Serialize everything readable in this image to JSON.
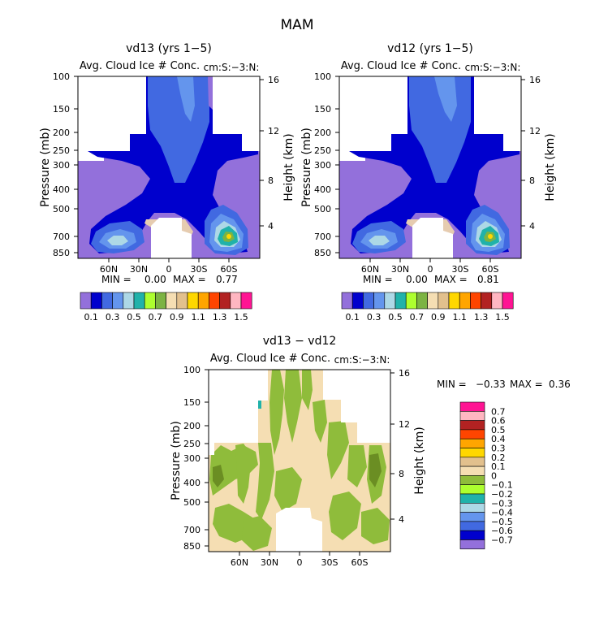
{
  "page_title": "MAM",
  "panels": [
    {
      "title": "vd13 (yrs 1−5)",
      "subtitle": "Avg. Cloud Ice # Conc.",
      "units": "cm:S:−3:N:",
      "min_label": "MIN =",
      "min_value": "0.00",
      "max_label": "MAX =",
      "max_value": "0.77"
    },
    {
      "title": "vd12 (yrs 1−5)",
      "subtitle": "Avg. Cloud Ice # Conc.",
      "units": "cm:S:−3:N:",
      "min_label": "MIN =",
      "min_value": "0.00",
      "max_label": "MAX =",
      "max_value": "0.81"
    },
    {
      "title": "vd13 − vd12",
      "subtitle": "Avg. Cloud Ice # Conc.",
      "units": "cm:S:−3:N:",
      "min_label": "MIN =",
      "min_value": "−0.33",
      "max_label": "MAX =",
      "max_value": "0.36"
    }
  ],
  "axes": {
    "ylabel_left": "Pressure (mb)",
    "ylabel_right": "Height (km)",
    "pressure_ticks": [
      "100",
      "150",
      "200",
      "250",
      "300",
      "400",
      "500",
      "700",
      "850"
    ],
    "height_ticks": [
      "16",
      "12",
      "8",
      "4"
    ],
    "lat_ticks": [
      "60N",
      "30N",
      "0",
      "30S",
      "60S"
    ]
  },
  "colorbar_top": {
    "colors": [
      "#9370db",
      "#0000cd",
      "#4169e1",
      "#6495ed",
      "#add8e6",
      "#20b2aa",
      "#adff2f",
      "#7cb342",
      "#f5deb3",
      "#e2c08d",
      "#ffd700",
      "#ffa500",
      "#ff4500",
      "#b22222",
      "#ffb6c1",
      "#ff1493"
    ],
    "labels": [
      "0.1",
      "0.3",
      "0.5",
      "0.7",
      "0.9",
      "1.1",
      "1.3",
      "1.5"
    ]
  },
  "colorbar_diff": {
    "colors": [
      "#ff1493",
      "#ffb6c1",
      "#b22222",
      "#ff4500",
      "#ffa500",
      "#ffd700",
      "#e2c08d",
      "#f5deb3",
      "#8fbc3b",
      "#adff2f",
      "#20b2aa",
      "#add8e6",
      "#6495ed",
      "#4169e1",
      "#0000cd",
      "#9370db"
    ],
    "labels": [
      "0.7",
      "0.6",
      "0.5",
      "0.4",
      "0.3",
      "0.2",
      "0.1",
      "0",
      "−0.1",
      "−0.2",
      "−0.3",
      "−0.4",
      "−0.5",
      "−0.6",
      "−0.7"
    ]
  },
  "chart_data": [
    {
      "type": "heatmap",
      "title": "vd13 (yrs 1−5)",
      "subtitle": "Avg. Cloud Ice # Conc.",
      "units": "cm^-3",
      "x": [
        "60N",
        "30N",
        "0",
        "30S",
        "60S"
      ],
      "y_pressure": [
        100,
        150,
        200,
        250,
        300,
        400,
        500,
        700,
        850
      ],
      "y_height": [
        16,
        12,
        8,
        4
      ],
      "min": 0.0,
      "max": 0.77,
      "contour_levels": [
        0.1,
        0.3,
        0.5,
        0.7,
        0.9,
        1.1,
        1.3,
        1.5
      ]
    },
    {
      "type": "heatmap",
      "title": "vd12 (yrs 1−5)",
      "subtitle": "Avg. Cloud Ice # Conc.",
      "units": "cm^-3",
      "x": [
        "60N",
        "30N",
        "0",
        "30S",
        "60S"
      ],
      "y_pressure": [
        100,
        150,
        200,
        250,
        300,
        400,
        500,
        700,
        850
      ],
      "y_height": [
        16,
        12,
        8,
        4
      ],
      "min": 0.0,
      "max": 0.81,
      "contour_levels": [
        0.1,
        0.3,
        0.5,
        0.7,
        0.9,
        1.1,
        1.3,
        1.5
      ]
    },
    {
      "type": "heatmap",
      "title": "vd13 − vd12",
      "subtitle": "Avg. Cloud Ice # Conc.",
      "units": "cm^-3",
      "x": [
        "60N",
        "30N",
        "0",
        "30S",
        "60S"
      ],
      "y_pressure": [
        100,
        150,
        200,
        250,
        300,
        400,
        500,
        700,
        850
      ],
      "y_height": [
        16,
        12,
        8,
        4
      ],
      "min": -0.33,
      "max": 0.36,
      "contour_levels": [
        -0.7,
        -0.6,
        -0.5,
        -0.4,
        -0.3,
        -0.2,
        -0.1,
        0,
        0.1,
        0.2,
        0.3,
        0.4,
        0.5,
        0.6,
        0.7
      ]
    }
  ]
}
